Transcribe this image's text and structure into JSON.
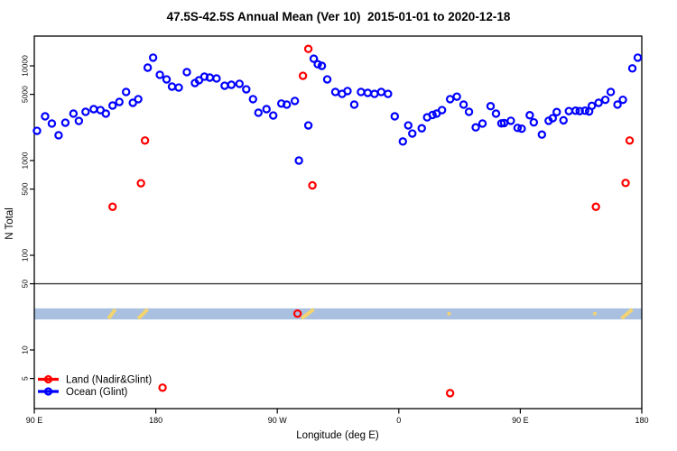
{
  "title": "47.5S-42.5S Annual Mean (Ver 10)  2015-01-01 to 2020-12-18",
  "x_axis": {
    "label": "Longitude (deg E)",
    "tick_labels": [
      "90 E",
      "180",
      "90 W",
      "0",
      "90 E",
      "180"
    ],
    "tick_positions_deg": [
      0,
      90,
      180,
      270,
      360,
      450
    ]
  },
  "y_axis": {
    "label": "N Total",
    "tick_values": [
      10000,
      5000,
      1000,
      500,
      100,
      50,
      10,
      5
    ],
    "scale": "log10"
  },
  "legend": {
    "items": [
      {
        "label": "Land (Nadir&Glint)",
        "color": "#ff0000"
      },
      {
        "label": "Ocean (Glint)",
        "color": "#0000ff"
      }
    ]
  },
  "colors": {
    "land": "#ff0000",
    "ocean": "#0000ff",
    "band": "#a9c0e0",
    "band_mark": "#f4d470",
    "threshold_line": "#3a3a3a",
    "frame": "#000000"
  },
  "chart_data": {
    "type": "scatter",
    "title": "47.5S-42.5S Annual Mean (Ver 10)  2015-01-01 to 2020-12-18",
    "xlabel": "Longitude (deg E)",
    "ylabel": "N Total",
    "x_axis_span_deg": [
      0,
      450
    ],
    "x_tick_positions_deg": [
      0,
      90,
      180,
      270,
      360,
      450
    ],
    "x_tick_labels": [
      "90 E",
      "180",
      "90 W",
      "0",
      "90 E",
      "180"
    ],
    "y_scale": "log10",
    "y_ticks": [
      10000,
      5000,
      1000,
      500,
      100,
      50,
      10,
      5
    ],
    "y_range_approx": [
      2.4,
      20600
    ],
    "threshold_line_y": 50,
    "band": {
      "value_top": 27.5,
      "value_bottom": 21,
      "marks": [
        {
          "from": 55,
          "to": 60,
          "kind": "slash"
        },
        {
          "from": 77,
          "to": 84,
          "kind": "slash"
        },
        {
          "from": 198,
          "to": 207,
          "kind": "slash"
        },
        {
          "from": 307,
          "to": 309,
          "kind": "dot"
        },
        {
          "from": 415,
          "to": 417,
          "kind": "dot"
        },
        {
          "from": 435,
          "to": 443,
          "kind": "slash"
        }
      ]
    },
    "series": [
      {
        "name": "Land (Nadir&Glint)",
        "color": "#ff0000",
        "points": [
          [
            58,
            325
          ],
          [
            79,
            576
          ],
          [
            82,
            1628
          ],
          [
            95,
            4.0
          ],
          [
            195,
            24.2
          ],
          [
            199,
            7850
          ],
          [
            203,
            15100
          ],
          [
            206,
            547
          ],
          [
            308,
            3.5
          ],
          [
            416,
            325
          ],
          [
            438,
            580
          ],
          [
            441,
            1628
          ]
        ]
      },
      {
        "name": "Ocean (Glint)",
        "color": "#0000ff",
        "points": [
          [
            2,
            2060
          ],
          [
            8,
            2930
          ],
          [
            13,
            2460
          ],
          [
            18,
            1850
          ],
          [
            23,
            2510
          ],
          [
            29,
            3130
          ],
          [
            33,
            2620
          ],
          [
            38,
            3270
          ],
          [
            44,
            3490
          ],
          [
            49,
            3410
          ],
          [
            53,
            3130
          ],
          [
            58,
            3810
          ],
          [
            63,
            4160
          ],
          [
            68,
            5300
          ],
          [
            73,
            4070
          ],
          [
            77,
            4450
          ],
          [
            84,
            9570
          ],
          [
            88,
            12200
          ],
          [
            93,
            8040
          ],
          [
            98,
            7190
          ],
          [
            102,
            6040
          ],
          [
            107,
            5900
          ],
          [
            113,
            8580
          ],
          [
            119,
            6590
          ],
          [
            122,
            7050
          ],
          [
            126,
            7690
          ],
          [
            130,
            7520
          ],
          [
            135,
            7360
          ],
          [
            141,
            6170
          ],
          [
            146,
            6310
          ],
          [
            152,
            6460
          ],
          [
            157,
            5650
          ],
          [
            162,
            4450
          ],
          [
            166,
            3200
          ],
          [
            172,
            3490
          ],
          [
            177,
            2990
          ],
          [
            183,
            4000
          ],
          [
            187,
            3900
          ],
          [
            193,
            4260
          ],
          [
            196,
            1000
          ],
          [
            203,
            2350
          ],
          [
            207,
            11900
          ],
          [
            210,
            10400
          ],
          [
            213,
            10000
          ],
          [
            217,
            7190
          ],
          [
            223,
            5300
          ],
          [
            228,
            5060
          ],
          [
            232,
            5420
          ],
          [
            237,
            3900
          ],
          [
            242,
            5300
          ],
          [
            247,
            5180
          ],
          [
            252,
            5060
          ],
          [
            257,
            5300
          ],
          [
            262,
            5060
          ],
          [
            267,
            2930
          ],
          [
            273,
            1590
          ],
          [
            277,
            2350
          ],
          [
            280,
            1930
          ],
          [
            287,
            2190
          ],
          [
            291,
            2860
          ],
          [
            295,
            3030
          ],
          [
            298,
            3130
          ],
          [
            302,
            3410
          ],
          [
            308,
            4450
          ],
          [
            313,
            4730
          ],
          [
            318,
            3900
          ],
          [
            322,
            3270
          ],
          [
            327,
            2240
          ],
          [
            332,
            2460
          ],
          [
            338,
            3750
          ],
          [
            342,
            3130
          ],
          [
            346,
            2470
          ],
          [
            348,
            2490
          ],
          [
            353,
            2630
          ],
          [
            358,
            2210
          ],
          [
            361,
            2170
          ],
          [
            367,
            3010
          ],
          [
            370,
            2530
          ],
          [
            376,
            1880
          ],
          [
            381,
            2630
          ],
          [
            384,
            2800
          ],
          [
            387,
            3250
          ],
          [
            392,
            2660
          ],
          [
            396,
            3330
          ],
          [
            401,
            3360
          ],
          [
            404,
            3330
          ],
          [
            408,
            3360
          ],
          [
            411,
            3300
          ],
          [
            413,
            3780
          ],
          [
            418,
            4070
          ],
          [
            423,
            4380
          ],
          [
            427,
            5300
          ],
          [
            432,
            3900
          ],
          [
            436,
            4380
          ],
          [
            443,
            9400
          ],
          [
            447,
            12200
          ]
        ]
      }
    ],
    "legend_position": "bottom-left",
    "grid": false
  }
}
